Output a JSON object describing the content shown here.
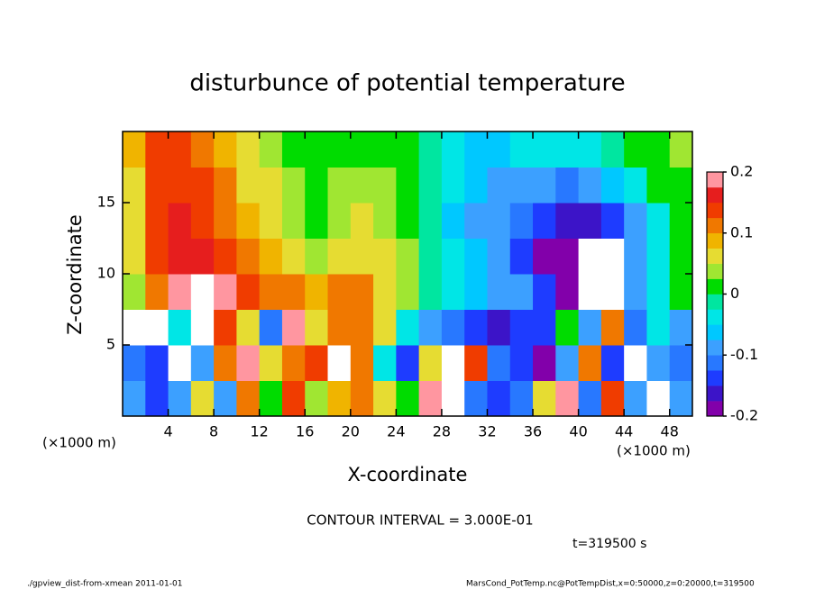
{
  "chart_data": {
    "type": "heatmap",
    "title": "disturbunce of potential temperature",
    "x_label": "X-coordinate",
    "y_label": "Z-coordinate",
    "x_unit": "(×1000 m)",
    "y_unit": "(×1000 m)",
    "contour_interval": "CONTOUR INTERVAL = 3.000E-01",
    "time_label": "t=319500 s",
    "footer_left": "./gpview_dist-from-xmean  2011-01-01",
    "footer_right": "MarsCond_PotTemp.nc@PotTempDist,x=0:50000,z=0:20000,t=319500",
    "xlim": [
      0,
      50
    ],
    "ylim": [
      0,
      20
    ],
    "xticks": [
      4,
      8,
      12,
      16,
      20,
      24,
      28,
      32,
      36,
      40,
      44,
      48
    ],
    "yticks": [
      5,
      10,
      15
    ],
    "clim": [
      -0.2,
      0.2
    ],
    "cticks": [
      -0.2,
      -0.1,
      0,
      0.1,
      0.2
    ],
    "colors": [
      "#8200aa",
      "#3c14c8",
      "#1e3cff",
      "#2878ff",
      "#3ca0ff",
      "#00c8ff",
      "#00e6e6",
      "#00e6a0",
      "#00dc00",
      "#a0e632",
      "#e6dc32",
      "#f0b400",
      "#f07800",
      "#f03c00",
      "#e61e1e",
      "#ff96a0"
    ],
    "z": [
      [
        -0.1,
        -0.14,
        -0.08,
        0.05,
        -0.1,
        0.12,
        0.02,
        0.15,
        0.03,
        0.08,
        0.1,
        0.05,
        0.0,
        0.18,
        0.3,
        -0.12,
        -0.15,
        -0.12,
        0.05,
        0.2,
        -0.12,
        0.15,
        -0.08,
        0.3,
        -0.1
      ],
      [
        -0.12,
        -0.15,
        0.3,
        -0.1,
        0.12,
        0.18,
        0.05,
        0.1,
        0.15,
        0.25,
        0.1,
        -0.05,
        -0.15,
        0.05,
        0.25,
        0.15,
        -0.12,
        -0.15,
        -0.18,
        -0.1,
        0.1,
        -0.15,
        0.3,
        -0.1,
        -0.12
      ],
      [
        0.3,
        0.3,
        -0.05,
        0.3,
        0.15,
        0.05,
        -0.12,
        0.2,
        0.05,
        0.1,
        0.12,
        0.05,
        -0.05,
        -0.1,
        -0.12,
        -0.14,
        -0.16,
        -0.14,
        -0.15,
        0.0,
        -0.1,
        0.1,
        -0.12,
        -0.05,
        -0.08
      ],
      [
        0.04,
        0.12,
        0.19,
        0.25,
        0.18,
        0.14,
        0.12,
        0.1,
        0.08,
        0.1,
        0.1,
        0.07,
        0.04,
        -0.01,
        -0.04,
        -0.06,
        -0.08,
        -0.1,
        -0.15,
        -0.2,
        -0.25,
        -0.25,
        -0.08,
        -0.03,
        0.0
      ],
      [
        0.05,
        0.13,
        0.17,
        0.17,
        0.14,
        0.11,
        0.08,
        0.06,
        0.04,
        0.06,
        0.06,
        0.05,
        0.03,
        -0.02,
        -0.05,
        -0.07,
        -0.1,
        -0.13,
        -0.18,
        -0.2,
        -0.25,
        -0.25,
        -0.1,
        -0.04,
        0.0
      ],
      [
        0.06,
        0.14,
        0.16,
        0.15,
        0.12,
        0.09,
        0.06,
        0.04,
        0.02,
        0.04,
        0.05,
        0.04,
        0.02,
        -0.02,
        -0.06,
        -0.08,
        -0.1,
        -0.12,
        -0.15,
        -0.17,
        -0.17,
        -0.14,
        -0.08,
        -0.03,
        0.0
      ],
      [
        0.07,
        0.14,
        0.15,
        0.13,
        0.1,
        0.07,
        0.05,
        0.03,
        0.01,
        0.03,
        0.04,
        0.03,
        0.01,
        -0.02,
        -0.05,
        -0.07,
        -0.08,
        -0.09,
        -0.1,
        -0.11,
        -0.1,
        -0.07,
        -0.04,
        0.0,
        0.02
      ],
      [
        0.08,
        0.13,
        0.14,
        0.12,
        0.09,
        0.06,
        0.04,
        0.02,
        0.01,
        0.02,
        0.02,
        0.01,
        0.0,
        -0.02,
        -0.04,
        -0.06,
        -0.06,
        -0.05,
        -0.05,
        -0.04,
        -0.03,
        -0.01,
        0.01,
        0.02,
        0.03
      ]
    ]
  }
}
